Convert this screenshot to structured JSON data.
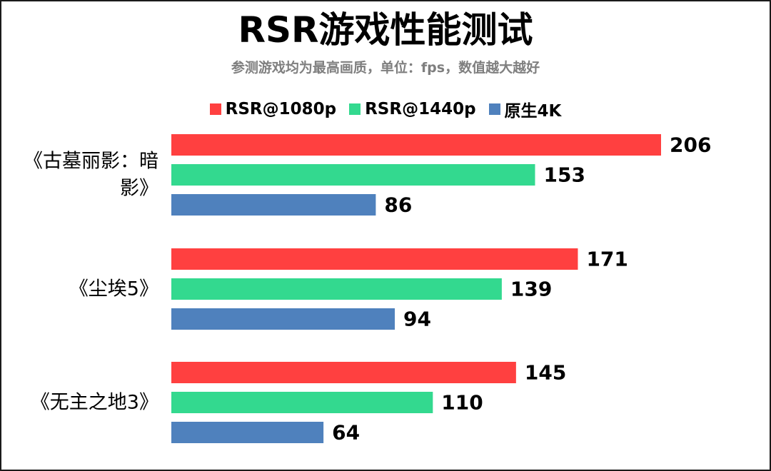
{
  "chart_data": {
    "type": "bar",
    "orientation": "horizontal",
    "title": "RSR游戏性能测试",
    "subtitle": "参测游戏均为最高画质，单位：fps，数值越大越好",
    "categories": [
      [
        "《古墓丽影：暗",
        "影》"
      ],
      [
        "《尘埃5》"
      ],
      [
        "《无主之地3》"
      ]
    ],
    "series": [
      {
        "name": "RSR@1080p",
        "color": "#ff4040",
        "values": [
          206,
          171,
          145
        ]
      },
      {
        "name": "RSR@1440p",
        "color": "#33d98f",
        "values": [
          153,
          139,
          110
        ]
      },
      {
        "name": "原生4K",
        "color": "#4f81bd",
        "values": [
          86,
          94,
          64
        ]
      }
    ],
    "xlim": [
      0,
      206
    ],
    "grid": false,
    "legend_position": "top-center",
    "data_labels": true
  }
}
